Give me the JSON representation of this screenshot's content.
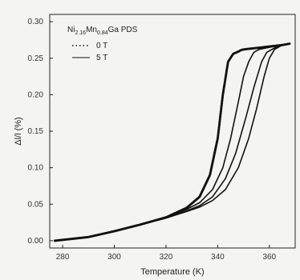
{
  "chart_data": {
    "type": "line",
    "title": "",
    "xlabel": "Temperature (K)",
    "ylabel": "Δl/l (%)",
    "xlim": [
      275,
      370
    ],
    "ylim": [
      -0.01,
      0.31
    ],
    "xticks": [
      280,
      300,
      320,
      340,
      360
    ],
    "yticks": [
      0.0,
      0.05,
      0.1,
      0.15,
      0.2,
      0.25,
      0.3
    ],
    "ytick_labels": [
      "0.00",
      "0.05",
      "0.10",
      "0.15",
      "0.20",
      "0.25",
      "0.30"
    ],
    "legend": {
      "title_main": "Ni",
      "title_sub1": "2.16",
      "title_mid": "Mn",
      "title_sub2": "0.84",
      "title_end": "Ga PDS",
      "placement": "top-left"
    },
    "series": [
      {
        "name": "0 T",
        "style": "dotted",
        "x": [
          277,
          290,
          300,
          310,
          320,
          328,
          333,
          337,
          340,
          342,
          344,
          346,
          348,
          349,
          350,
          355,
          360,
          365,
          368
        ],
        "y": [
          0.0,
          0.005,
          0.013,
          0.022,
          0.032,
          0.045,
          0.06,
          0.09,
          0.14,
          0.2,
          0.245,
          0.256,
          0.259,
          0.261,
          0.262,
          0.264,
          0.266,
          0.268,
          0.27
        ]
      },
      {
        "name": "5 T",
        "style": "solid",
        "x": [
          277,
          290,
          300,
          310,
          320,
          328,
          333,
          338,
          342,
          345,
          348,
          350,
          352,
          354,
          356,
          360,
          365,
          368
        ],
        "y": [
          0.0,
          0.005,
          0.013,
          0.022,
          0.032,
          0.043,
          0.052,
          0.07,
          0.1,
          0.14,
          0.19,
          0.225,
          0.245,
          0.258,
          0.262,
          0.265,
          0.268,
          0.27
        ]
      },
      {
        "name": "",
        "style": "solid",
        "x": [
          277,
          290,
          300,
          310,
          320,
          328,
          333,
          338,
          343,
          347,
          351,
          354,
          357,
          359,
          362,
          365,
          368
        ],
        "y": [
          0.0,
          0.005,
          0.013,
          0.022,
          0.031,
          0.041,
          0.048,
          0.06,
          0.085,
          0.12,
          0.17,
          0.21,
          0.245,
          0.258,
          0.264,
          0.268,
          0.27
        ]
      },
      {
        "name": "",
        "style": "solid",
        "x": [
          277,
          290,
          300,
          310,
          320,
          328,
          333,
          338,
          343,
          348,
          352,
          355,
          358,
          360,
          362,
          365,
          368
        ],
        "y": [
          0.0,
          0.005,
          0.013,
          0.022,
          0.031,
          0.04,
          0.046,
          0.055,
          0.07,
          0.1,
          0.14,
          0.18,
          0.225,
          0.25,
          0.262,
          0.268,
          0.27
        ]
      }
    ]
  }
}
